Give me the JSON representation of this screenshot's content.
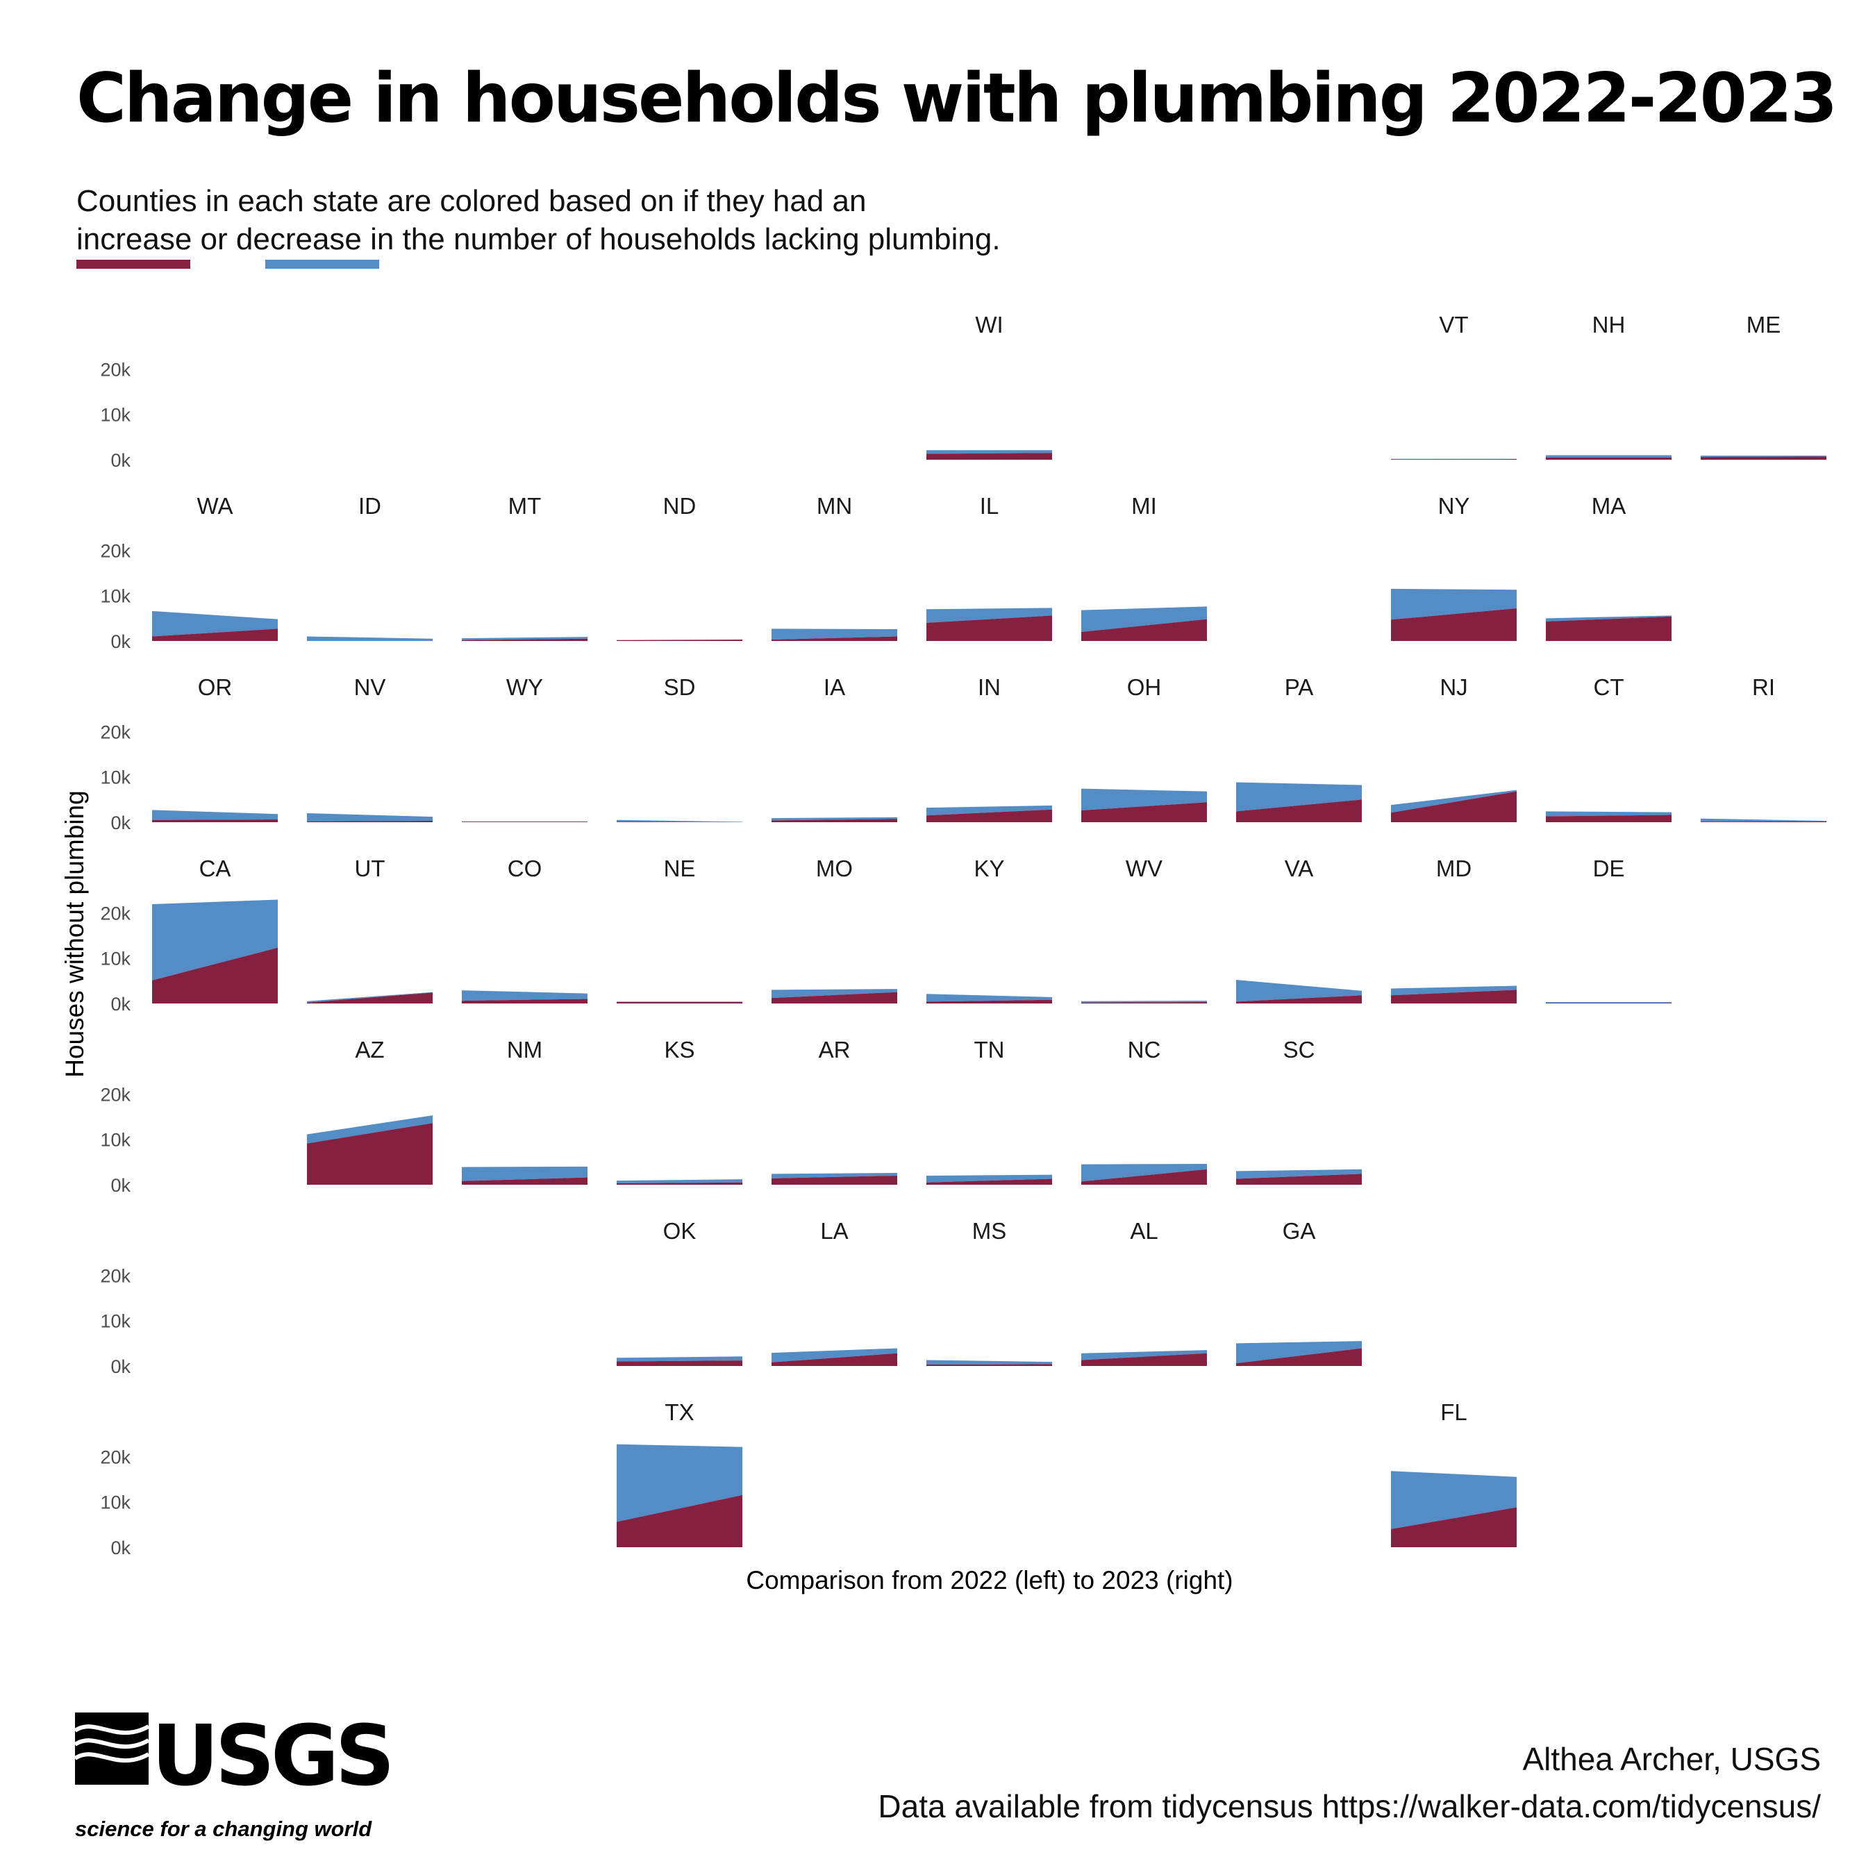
{
  "title": "Change in households with plumbing 2022-2023",
  "subtitle_line1": "Counties in each state are colored based on if they had an",
  "subtitle_line2": "increase or decrease in the number of households lacking plumbing.",
  "colors": {
    "increase": "#862040",
    "decrease": "#548CC6"
  },
  "logo": {
    "wordmark": "USGS",
    "tagline": "science for a changing world"
  },
  "credits": {
    "author": "Althea Archer, USGS",
    "source": "Data available from tidycensus https://walker-data.com/tidycensus/"
  },
  "chart_data": {
    "type": "area",
    "layout": "geofacet small multiples, stacked area",
    "xlabel": "Comparison from 2022 (left) to 2023 (right)",
    "ylabel": "Houses without plumbing",
    "x": [
      2022,
      2023
    ],
    "ylim": [
      0,
      23000
    ],
    "yticks": [
      0,
      10000,
      20000
    ],
    "ytick_labels": [
      "0k",
      "10k",
      "20k"
    ],
    "grid": false,
    "stack_order": [
      "increase",
      "decrease"
    ],
    "panels": [
      {
        "state": "WI",
        "increase": [
          1300,
          1500
        ],
        "decrease": [
          800,
          600
        ]
      },
      {
        "state": "VT",
        "increase": [
          100,
          150
        ],
        "decrease": [
          100,
          50
        ]
      },
      {
        "state": "NH",
        "increase": [
          500,
          500
        ],
        "decrease": [
          500,
          500
        ]
      },
      {
        "state": "ME",
        "increase": [
          600,
          700
        ],
        "decrease": [
          300,
          200
        ]
      },
      {
        "state": "WA",
        "increase": [
          1000,
          2700
        ],
        "decrease": [
          5600,
          2100
        ]
      },
      {
        "state": "ID",
        "increase": [
          0,
          0
        ],
        "decrease": [
          1000,
          500
        ]
      },
      {
        "state": "MT",
        "increase": [
          200,
          500
        ],
        "decrease": [
          400,
          400
        ]
      },
      {
        "state": "ND",
        "increase": [
          200,
          300
        ],
        "decrease": [
          0,
          0
        ]
      },
      {
        "state": "MN",
        "increase": [
          300,
          1000
        ],
        "decrease": [
          2400,
          1600
        ]
      },
      {
        "state": "IL",
        "increase": [
          4000,
          5600
        ],
        "decrease": [
          3000,
          1700
        ]
      },
      {
        "state": "MI",
        "increase": [
          2000,
          4800
        ],
        "decrease": [
          4800,
          2800
        ]
      },
      {
        "state": "NY",
        "increase": [
          4700,
          7200
        ],
        "decrease": [
          6800,
          4100
        ]
      },
      {
        "state": "MA",
        "increase": [
          4300,
          5400
        ],
        "decrease": [
          700,
          200
        ]
      },
      {
        "state": "OR",
        "increase": [
          500,
          600
        ],
        "decrease": [
          2200,
          1200
        ]
      },
      {
        "state": "NV",
        "increase": [
          200,
          300
        ],
        "decrease": [
          1800,
          900
        ]
      },
      {
        "state": "WY",
        "increase": [
          100,
          100
        ],
        "decrease": [
          100,
          100
        ]
      },
      {
        "state": "SD",
        "increase": [
          100,
          0
        ],
        "decrease": [
          400,
          100
        ]
      },
      {
        "state": "IA",
        "increase": [
          400,
          700
        ],
        "decrease": [
          500,
          400
        ]
      },
      {
        "state": "IN",
        "increase": [
          1500,
          2800
        ],
        "decrease": [
          1700,
          900
        ]
      },
      {
        "state": "OH",
        "increase": [
          2600,
          4400
        ],
        "decrease": [
          4800,
          2400
        ]
      },
      {
        "state": "PA",
        "increase": [
          2400,
          5000
        ],
        "decrease": [
          6400,
          3200
        ]
      },
      {
        "state": "NJ",
        "increase": [
          2100,
          6800
        ],
        "decrease": [
          1700,
          300
        ]
      },
      {
        "state": "CT",
        "increase": [
          1300,
          1600
        ],
        "decrease": [
          1100,
          600
        ]
      },
      {
        "state": "RI",
        "increase": [
          100,
          200
        ],
        "decrease": [
          700,
          100
        ]
      },
      {
        "state": "CA",
        "increase": [
          5100,
          12300
        ],
        "decrease": [
          16800,
          10600
        ]
      },
      {
        "state": "UT",
        "increase": [
          200,
          2400
        ],
        "decrease": [
          300,
          100
        ]
      },
      {
        "state": "CO",
        "increase": [
          600,
          1000
        ],
        "decrease": [
          2300,
          1200
        ]
      },
      {
        "state": "NE",
        "increase": [
          300,
          300
        ],
        "decrease": [
          100,
          100
        ]
      },
      {
        "state": "MO",
        "increase": [
          1200,
          2500
        ],
        "decrease": [
          1800,
          700
        ]
      },
      {
        "state": "KY",
        "increase": [
          400,
          800
        ],
        "decrease": [
          1700,
          600
        ]
      },
      {
        "state": "WV",
        "increase": [
          200,
          300
        ],
        "decrease": [
          300,
          300
        ]
      },
      {
        "state": "VA",
        "increase": [
          400,
          1800
        ],
        "decrease": [
          4800,
          1000
        ]
      },
      {
        "state": "MD",
        "increase": [
          1800,
          3000
        ],
        "decrease": [
          1500,
          900
        ]
      },
      {
        "state": "DE",
        "increase": [
          100,
          100
        ],
        "decrease": [
          200,
          200
        ]
      },
      {
        "state": "AZ",
        "increase": [
          9100,
          13600
        ],
        "decrease": [
          2000,
          1700
        ]
      },
      {
        "state": "NM",
        "increase": [
          800,
          1600
        ],
        "decrease": [
          3100,
          2400
        ]
      },
      {
        "state": "KS",
        "increase": [
          300,
          500
        ],
        "decrease": [
          600,
          700
        ]
      },
      {
        "state": "AR",
        "increase": [
          1400,
          2000
        ],
        "decrease": [
          1000,
          600
        ]
      },
      {
        "state": "TN",
        "increase": [
          500,
          1300
        ],
        "decrease": [
          1500,
          900
        ]
      },
      {
        "state": "NC",
        "increase": [
          700,
          3400
        ],
        "decrease": [
          3800,
          1200
        ]
      },
      {
        "state": "SC",
        "increase": [
          1300,
          2400
        ],
        "decrease": [
          1700,
          1000
        ]
      },
      {
        "state": "OK",
        "increase": [
          1000,
          1200
        ],
        "decrease": [
          800,
          900
        ]
      },
      {
        "state": "LA",
        "increase": [
          800,
          2800
        ],
        "decrease": [
          2100,
          1100
        ]
      },
      {
        "state": "MS",
        "increase": [
          300,
          400
        ],
        "decrease": [
          1000,
          500
        ]
      },
      {
        "state": "AL",
        "increase": [
          1300,
          2800
        ],
        "decrease": [
          1500,
          700
        ]
      },
      {
        "state": "GA",
        "increase": [
          600,
          3900
        ],
        "decrease": [
          4400,
          1600
        ]
      },
      {
        "state": "TX",
        "increase": [
          5600,
          11500
        ],
        "decrease": [
          17100,
          10600
        ]
      },
      {
        "state": "FL",
        "increase": [
          4000,
          8800
        ],
        "decrease": [
          12800,
          6700
        ]
      }
    ]
  }
}
